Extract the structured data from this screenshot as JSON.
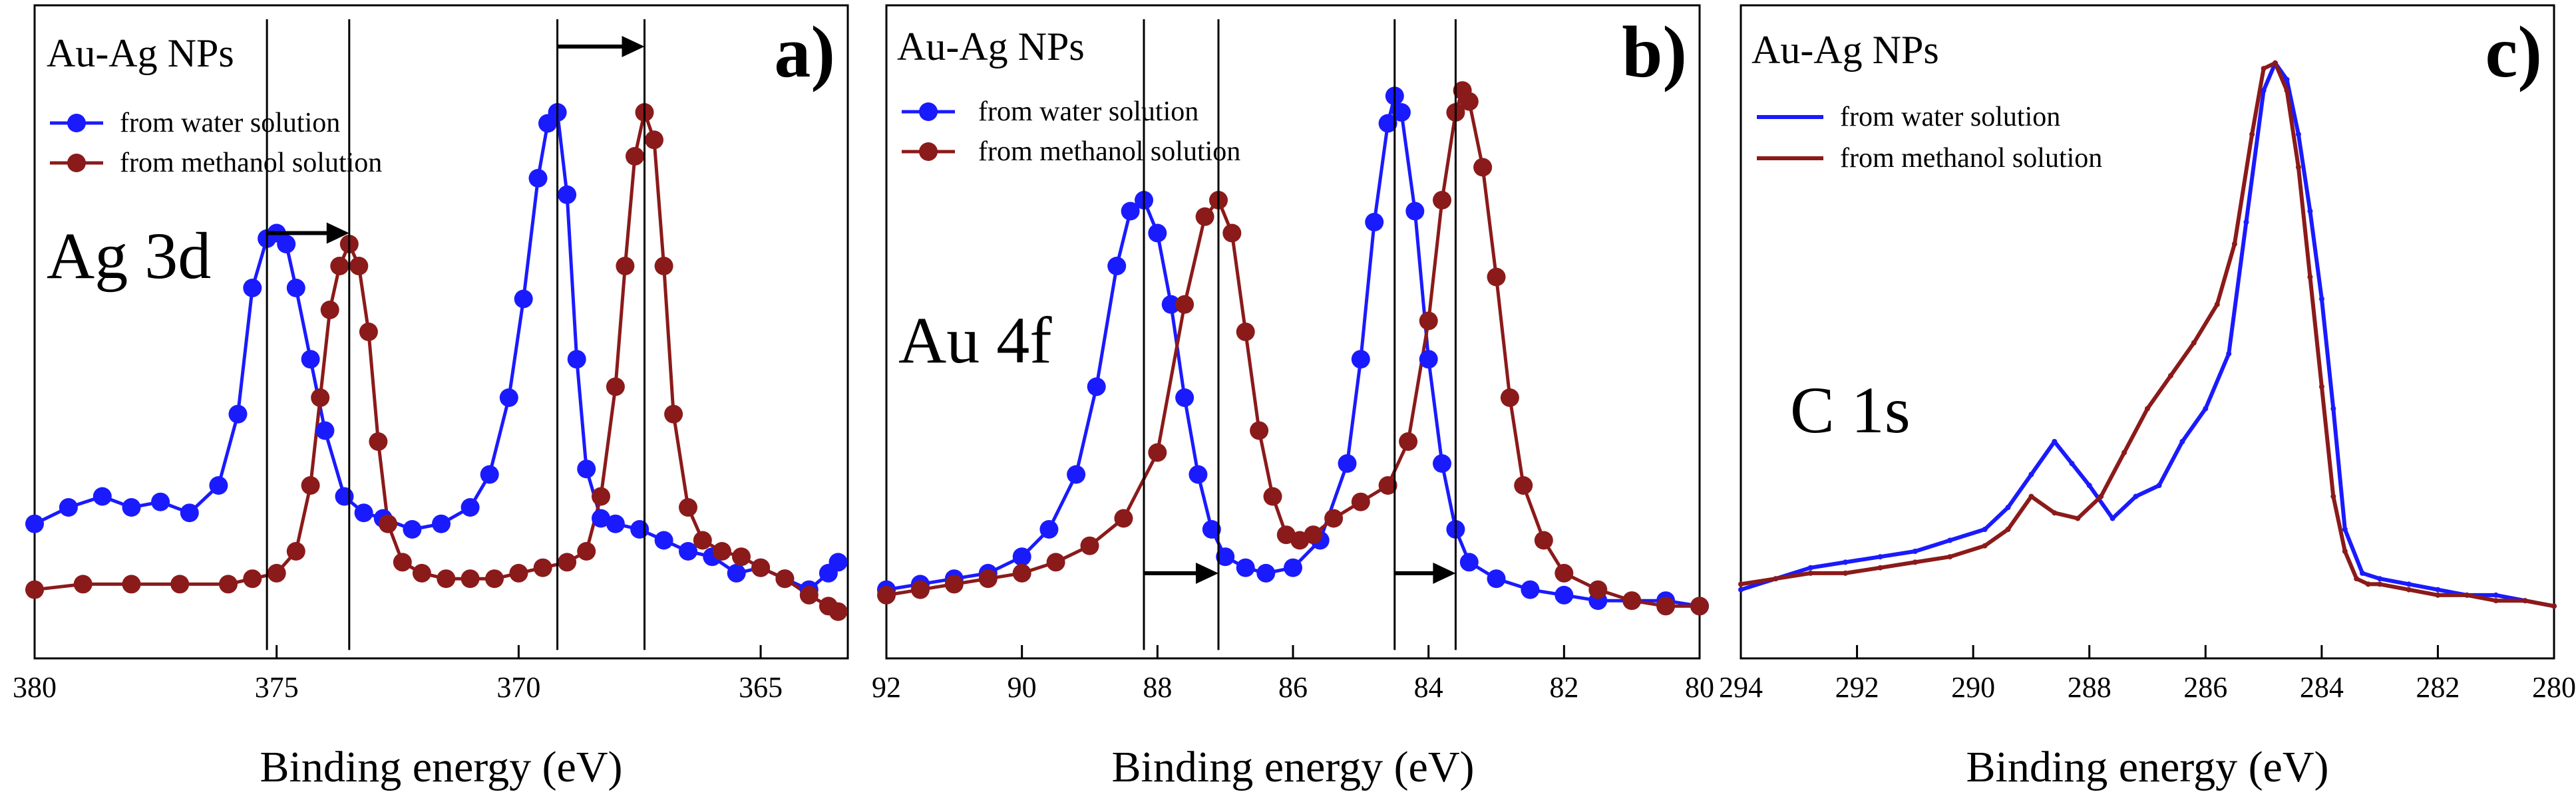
{
  "chart_data": [
    {
      "type": "scatter",
      "panel_label": "a)",
      "title": "Au-Ag NPs",
      "annotation": "Ag 3d",
      "xlabel": "Binding energy (eV)",
      "ylabel": "",
      "xlim": [
        380,
        363.2
      ],
      "ylim": [
        0,
        1
      ],
      "xticks": [
        380,
        375,
        370,
        365
      ],
      "tick_labels": [
        "380",
        "375",
        "370",
        "365"
      ],
      "markers": "dots",
      "series": [
        {
          "name": "from water solution",
          "color": "#1a1aff",
          "x": [
            380,
            379.3,
            378.6,
            378.0,
            377.4,
            376.8,
            376.2,
            375.8,
            375.5,
            375.2,
            375.0,
            374.8,
            374.6,
            374.3,
            374.0,
            373.6,
            373.2,
            372.8,
            372.2,
            371.6,
            371.0,
            370.6,
            370.2,
            369.9,
            369.6,
            369.4,
            369.2,
            369.0,
            368.8,
            368.6,
            368.3,
            368.0,
            367.5,
            367.0,
            366.5,
            366.0,
            365.5,
            365.0,
            364.5,
            364.0,
            363.6,
            363.4
          ],
          "y": [
            0.15,
            0.18,
            0.2,
            0.18,
            0.19,
            0.17,
            0.22,
            0.35,
            0.58,
            0.67,
            0.68,
            0.66,
            0.58,
            0.45,
            0.32,
            0.2,
            0.17,
            0.16,
            0.14,
            0.15,
            0.18,
            0.24,
            0.38,
            0.56,
            0.78,
            0.88,
            0.9,
            0.75,
            0.45,
            0.25,
            0.16,
            0.15,
            0.14,
            0.12,
            0.1,
            0.09,
            0.06,
            0.07,
            0.05,
            0.03,
            0.06,
            0.08
          ]
        },
        {
          "name": "from methanol solution",
          "color": "#8b1a1a",
          "x": [
            380,
            379.0,
            378.0,
            377.0,
            376.0,
            375.5,
            375.0,
            374.6,
            374.3,
            374.1,
            373.9,
            373.7,
            373.5,
            373.3,
            373.1,
            372.9,
            372.7,
            372.4,
            372.0,
            371.5,
            371.0,
            370.5,
            370.0,
            369.5,
            369.0,
            368.6,
            368.3,
            368.0,
            367.8,
            367.6,
            367.4,
            367.2,
            367.0,
            366.8,
            366.5,
            366.2,
            365.8,
            365.4,
            365.0,
            364.5,
            364.0,
            363.6,
            363.4
          ],
          "y": [
            0.03,
            0.04,
            0.04,
            0.04,
            0.04,
            0.05,
            0.06,
            0.1,
            0.22,
            0.38,
            0.54,
            0.62,
            0.66,
            0.62,
            0.5,
            0.3,
            0.15,
            0.08,
            0.06,
            0.05,
            0.05,
            0.05,
            0.06,
            0.07,
            0.08,
            0.1,
            0.2,
            0.4,
            0.62,
            0.82,
            0.9,
            0.85,
            0.62,
            0.35,
            0.18,
            0.12,
            0.1,
            0.09,
            0.07,
            0.05,
            0.02,
            0.0,
            -0.01
          ]
        }
      ],
      "vlines": [
        375.2,
        373.5,
        369.2,
        367.4
      ],
      "shift_arrows": [
        {
          "from": 375.2,
          "to": 373.5,
          "y": 0.68
        },
        {
          "from": 369.2,
          "to": 367.4,
          "y": 1.02
        }
      ]
    },
    {
      "type": "scatter",
      "panel_label": "b)",
      "title": "Au-Ag NPs",
      "annotation": "Au 4f",
      "xlabel": "Binding energy (eV)",
      "ylabel": "",
      "xlim": [
        92,
        80
      ],
      "ylim": [
        0,
        1
      ],
      "xticks": [
        92,
        90,
        88,
        86,
        84,
        82,
        80
      ],
      "tick_labels": [
        "92",
        "90",
        "88",
        "86",
        "84",
        "82",
        "80"
      ],
      "markers": "dots",
      "series": [
        {
          "name": "from water solution",
          "color": "#1a1aff",
          "x": [
            92,
            91.5,
            91.0,
            90.5,
            90.0,
            89.6,
            89.2,
            88.9,
            88.6,
            88.4,
            88.2,
            88.0,
            87.8,
            87.6,
            87.4,
            87.2,
            87.0,
            86.7,
            86.4,
            86.0,
            85.6,
            85.2,
            85.0,
            84.8,
            84.6,
            84.5,
            84.4,
            84.2,
            84.0,
            83.8,
            83.6,
            83.4,
            83.0,
            82.5,
            82.0,
            81.5,
            81.0,
            80.5,
            80.0
          ],
          "y": [
            0.03,
            0.04,
            0.05,
            0.06,
            0.09,
            0.14,
            0.24,
            0.4,
            0.62,
            0.72,
            0.74,
            0.68,
            0.55,
            0.38,
            0.24,
            0.14,
            0.09,
            0.07,
            0.06,
            0.07,
            0.12,
            0.26,
            0.45,
            0.7,
            0.88,
            0.93,
            0.9,
            0.72,
            0.45,
            0.26,
            0.14,
            0.08,
            0.05,
            0.03,
            0.02,
            0.01,
            0.01,
            0.01,
            0.0
          ]
        },
        {
          "name": "from methanol solution",
          "color": "#8b1a1a",
          "x": [
            92,
            91.5,
            91.0,
            90.5,
            90.0,
            89.5,
            89.0,
            88.5,
            88.0,
            87.6,
            87.3,
            87.1,
            86.9,
            86.7,
            86.5,
            86.3,
            86.1,
            85.9,
            85.7,
            85.4,
            85.0,
            84.6,
            84.3,
            84.0,
            83.8,
            83.6,
            83.5,
            83.4,
            83.2,
            83.0,
            82.8,
            82.6,
            82.3,
            82.0,
            81.5,
            81.0,
            80.5,
            80.0
          ],
          "y": [
            0.02,
            0.03,
            0.04,
            0.05,
            0.06,
            0.08,
            0.11,
            0.16,
            0.28,
            0.55,
            0.71,
            0.74,
            0.68,
            0.5,
            0.32,
            0.2,
            0.13,
            0.12,
            0.13,
            0.16,
            0.19,
            0.22,
            0.3,
            0.52,
            0.74,
            0.9,
            0.94,
            0.92,
            0.8,
            0.6,
            0.38,
            0.22,
            0.12,
            0.06,
            0.03,
            0.01,
            0.0,
            0.0
          ]
        }
      ],
      "vlines": [
        88.2,
        87.1,
        84.5,
        83.6
      ],
      "shift_arrows": [
        {
          "from": 88.2,
          "to": 87.1,
          "y": 0.06
        },
        {
          "from": 84.5,
          "to": 83.6,
          "y": 0.06
        }
      ]
    },
    {
      "type": "line",
      "panel_label": "c)",
      "title": "Au-Ag NPs",
      "annotation": "C 1s",
      "xlabel": "Binding energy (eV)",
      "ylabel": "",
      "xlim": [
        294,
        280
      ],
      "ylim": [
        0,
        1
      ],
      "xticks": [
        294,
        292,
        290,
        288,
        286,
        284,
        282,
        280
      ],
      "tick_labels": [
        "294",
        "292",
        "290",
        "288",
        "286",
        "284",
        "282",
        "280"
      ],
      "markers": "line",
      "series": [
        {
          "name": "from water solution",
          "color": "#1a1aff",
          "x": [
            294,
            293.4,
            292.8,
            292.2,
            291.6,
            291.0,
            290.4,
            289.8,
            289.4,
            289.0,
            288.6,
            288.3,
            288.0,
            287.6,
            287.2,
            286.8,
            286.4,
            286.0,
            285.6,
            285.3,
            285.0,
            284.8,
            284.6,
            284.4,
            284.2,
            284.0,
            283.8,
            283.6,
            283.3,
            283.0,
            282.5,
            282.0,
            281.5,
            281.0,
            280.5,
            280.0
          ],
          "y": [
            0.03,
            0.05,
            0.07,
            0.08,
            0.09,
            0.1,
            0.12,
            0.14,
            0.18,
            0.24,
            0.3,
            0.26,
            0.22,
            0.16,
            0.2,
            0.22,
            0.3,
            0.36,
            0.46,
            0.7,
            0.94,
            0.99,
            0.96,
            0.86,
            0.72,
            0.56,
            0.36,
            0.14,
            0.06,
            0.05,
            0.04,
            0.03,
            0.02,
            0.02,
            0.01,
            0.0
          ]
        },
        {
          "name": "from methanol solution",
          "color": "#8b1a1a",
          "x": [
            294,
            293.4,
            292.8,
            292.2,
            291.6,
            291.0,
            290.4,
            289.8,
            289.4,
            289.0,
            288.6,
            288.2,
            287.8,
            287.4,
            287.0,
            286.6,
            286.2,
            285.8,
            285.5,
            285.2,
            285.0,
            284.8,
            284.6,
            284.4,
            284.2,
            284.0,
            283.8,
            283.6,
            283.4,
            283.2,
            283.0,
            282.5,
            282.0,
            281.5,
            281.0,
            280.5,
            280.0
          ],
          "y": [
            0.04,
            0.05,
            0.06,
            0.06,
            0.07,
            0.08,
            0.09,
            0.11,
            0.14,
            0.2,
            0.17,
            0.16,
            0.2,
            0.28,
            0.36,
            0.42,
            0.48,
            0.55,
            0.66,
            0.86,
            0.98,
            0.99,
            0.94,
            0.8,
            0.6,
            0.4,
            0.2,
            0.1,
            0.05,
            0.04,
            0.04,
            0.03,
            0.02,
            0.02,
            0.01,
            0.01,
            0.0
          ]
        }
      ],
      "vlines": [],
      "shift_arrows": []
    }
  ]
}
